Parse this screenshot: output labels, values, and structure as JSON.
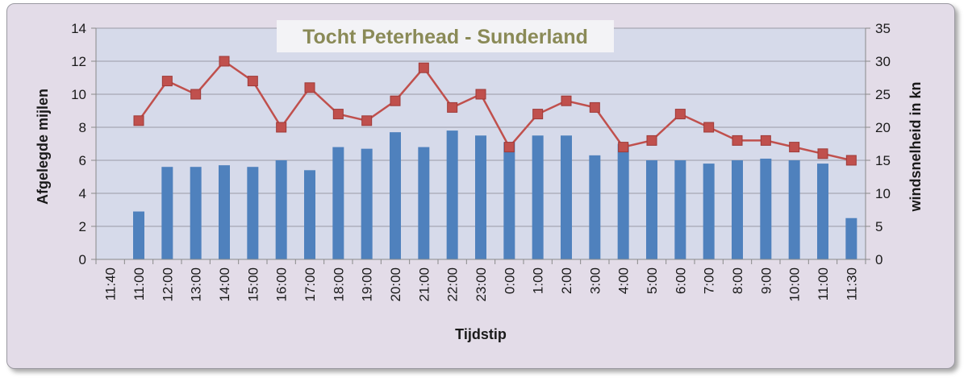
{
  "chart_data": {
    "type": "bar+line",
    "title": "Tocht Peterhead - Sunderland",
    "xlabel": "Tijdstip",
    "ylabel_left": "Afgelegde mijlen",
    "ylabel_right": "windsnelheid in kn",
    "categories": [
      "11:40",
      "11:00",
      "12:00",
      "13:00",
      "14:00",
      "15:00",
      "16:00",
      "17:00",
      "18:00",
      "19:00",
      "20:00",
      "21:00",
      "22:00",
      "23:00",
      "0:00",
      "1:00",
      "2:00",
      "3:00",
      "4:00",
      "5:00",
      "6:00",
      "7:00",
      "8:00",
      "9:00",
      "10:00",
      "11:00",
      "11:30"
    ],
    "ylim_left": [
      0,
      14
    ],
    "yticks_left": [
      0,
      2,
      4,
      6,
      8,
      10,
      12,
      14
    ],
    "ylim_right": [
      0,
      35
    ],
    "yticks_right": [
      0,
      5,
      10,
      15,
      20,
      25,
      30,
      35
    ],
    "grid": true,
    "series": [
      {
        "type": "bar",
        "axis": "left",
        "color": "#4f81bd",
        "values": [
          null,
          2.9,
          5.6,
          5.6,
          5.7,
          5.6,
          6.0,
          5.4,
          6.8,
          6.7,
          7.7,
          6.8,
          7.8,
          7.5,
          7.1,
          7.5,
          7.5,
          6.3,
          7.0,
          6.0,
          6.0,
          5.8,
          6.0,
          6.1,
          6.0,
          5.8,
          2.5
        ]
      },
      {
        "type": "line",
        "axis": "right",
        "color": "#c0504d",
        "marker": "square",
        "values": [
          null,
          21,
          27,
          25,
          30,
          27,
          20,
          26,
          22,
          21,
          24,
          29,
          23,
          25,
          17,
          22,
          24,
          23,
          17,
          18,
          22,
          20,
          18,
          18,
          17,
          16,
          15
        ]
      }
    ]
  }
}
